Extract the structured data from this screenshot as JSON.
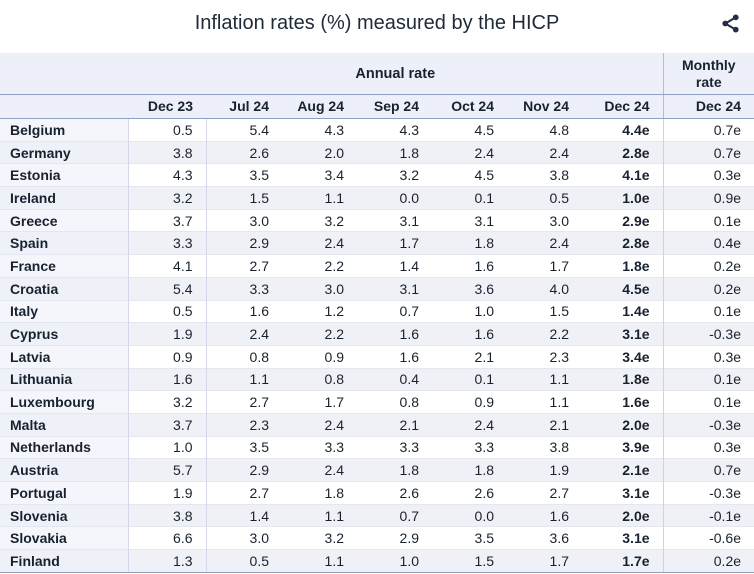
{
  "title": "Inflation rates (%) measured by the HICP",
  "toolbar": {
    "share_icon": "share-icon"
  },
  "colors": {
    "header_bg": "#edf0f9",
    "strong_border": "#8fa0c4",
    "light_border": "#e4e7ef",
    "even_row_bg": "#eff1f6",
    "country_cell_bg": "#f4f6fc",
    "text": "#18222f",
    "icon": "#232e40"
  },
  "chart_data": {
    "type": "table",
    "title": "Inflation rates (%) measured by the HICP",
    "group_headers": {
      "annual": "Annual rate",
      "monthly": "Monthly rate"
    },
    "annual_columns": [
      "Dec 23",
      "Jul 24",
      "Aug 24",
      "Sep 24",
      "Oct 24",
      "Nov 24",
      "Dec 24"
    ],
    "monthly_column": "Dec 24",
    "rows": [
      {
        "country": "Belgium",
        "annual": [
          "0.5",
          "5.4",
          "4.3",
          "4.3",
          "4.5",
          "4.8",
          "4.4e"
        ],
        "monthly": "0.7e"
      },
      {
        "country": "Germany",
        "annual": [
          "3.8",
          "2.6",
          "2.0",
          "1.8",
          "2.4",
          "2.4",
          "2.8e"
        ],
        "monthly": "0.7e"
      },
      {
        "country": "Estonia",
        "annual": [
          "4.3",
          "3.5",
          "3.4",
          "3.2",
          "4.5",
          "3.8",
          "4.1e"
        ],
        "monthly": "0.3e"
      },
      {
        "country": "Ireland",
        "annual": [
          "3.2",
          "1.5",
          "1.1",
          "0.0",
          "0.1",
          "0.5",
          "1.0e"
        ],
        "monthly": "0.9e"
      },
      {
        "country": "Greece",
        "annual": [
          "3.7",
          "3.0",
          "3.2",
          "3.1",
          "3.1",
          "3.0",
          "2.9e"
        ],
        "monthly": "0.1e"
      },
      {
        "country": "Spain",
        "annual": [
          "3.3",
          "2.9",
          "2.4",
          "1.7",
          "1.8",
          "2.4",
          "2.8e"
        ],
        "monthly": "0.4e"
      },
      {
        "country": "France",
        "annual": [
          "4.1",
          "2.7",
          "2.2",
          "1.4",
          "1.6",
          "1.7",
          "1.8e"
        ],
        "monthly": "0.2e"
      },
      {
        "country": "Croatia",
        "annual": [
          "5.4",
          "3.3",
          "3.0",
          "3.1",
          "3.6",
          "4.0",
          "4.5e"
        ],
        "monthly": "0.2e"
      },
      {
        "country": "Italy",
        "annual": [
          "0.5",
          "1.6",
          "1.2",
          "0.7",
          "1.0",
          "1.5",
          "1.4e"
        ],
        "monthly": "0.1e"
      },
      {
        "country": "Cyprus",
        "annual": [
          "1.9",
          "2.4",
          "2.2",
          "1.6",
          "1.6",
          "2.2",
          "3.1e"
        ],
        "monthly": "-0.3e"
      },
      {
        "country": "Latvia",
        "annual": [
          "0.9",
          "0.8",
          "0.9",
          "1.6",
          "2.1",
          "2.3",
          "3.4e"
        ],
        "monthly": "0.3e"
      },
      {
        "country": "Lithuania",
        "annual": [
          "1.6",
          "1.1",
          "0.8",
          "0.4",
          "0.1",
          "1.1",
          "1.8e"
        ],
        "monthly": "0.1e"
      },
      {
        "country": "Luxembourg",
        "annual": [
          "3.2",
          "2.7",
          "1.7",
          "0.8",
          "0.9",
          "1.1",
          "1.6e"
        ],
        "monthly": "0.1e"
      },
      {
        "country": "Malta",
        "annual": [
          "3.7",
          "2.3",
          "2.4",
          "2.1",
          "2.4",
          "2.1",
          "2.0e"
        ],
        "monthly": "-0.3e"
      },
      {
        "country": "Netherlands",
        "annual": [
          "1.0",
          "3.5",
          "3.3",
          "3.3",
          "3.3",
          "3.8",
          "3.9e"
        ],
        "monthly": "0.3e"
      },
      {
        "country": "Austria",
        "annual": [
          "5.7",
          "2.9",
          "2.4",
          "1.8",
          "1.8",
          "1.9",
          "2.1e"
        ],
        "monthly": "0.7e"
      },
      {
        "country": "Portugal",
        "annual": [
          "1.9",
          "2.7",
          "1.8",
          "2.6",
          "2.6",
          "2.7",
          "3.1e"
        ],
        "monthly": "-0.3e"
      },
      {
        "country": "Slovenia",
        "annual": [
          "3.8",
          "1.4",
          "1.1",
          "0.7",
          "0.0",
          "1.6",
          "2.0e"
        ],
        "monthly": "-0.1e"
      },
      {
        "country": "Slovakia",
        "annual": [
          "6.6",
          "3.0",
          "3.2",
          "2.9",
          "3.5",
          "3.6",
          "3.1e"
        ],
        "monthly": "-0.6e"
      },
      {
        "country": "Finland",
        "annual": [
          "1.3",
          "0.5",
          "1.1",
          "1.0",
          "1.5",
          "1.7",
          "1.7e"
        ],
        "monthly": "0.2e"
      }
    ]
  }
}
